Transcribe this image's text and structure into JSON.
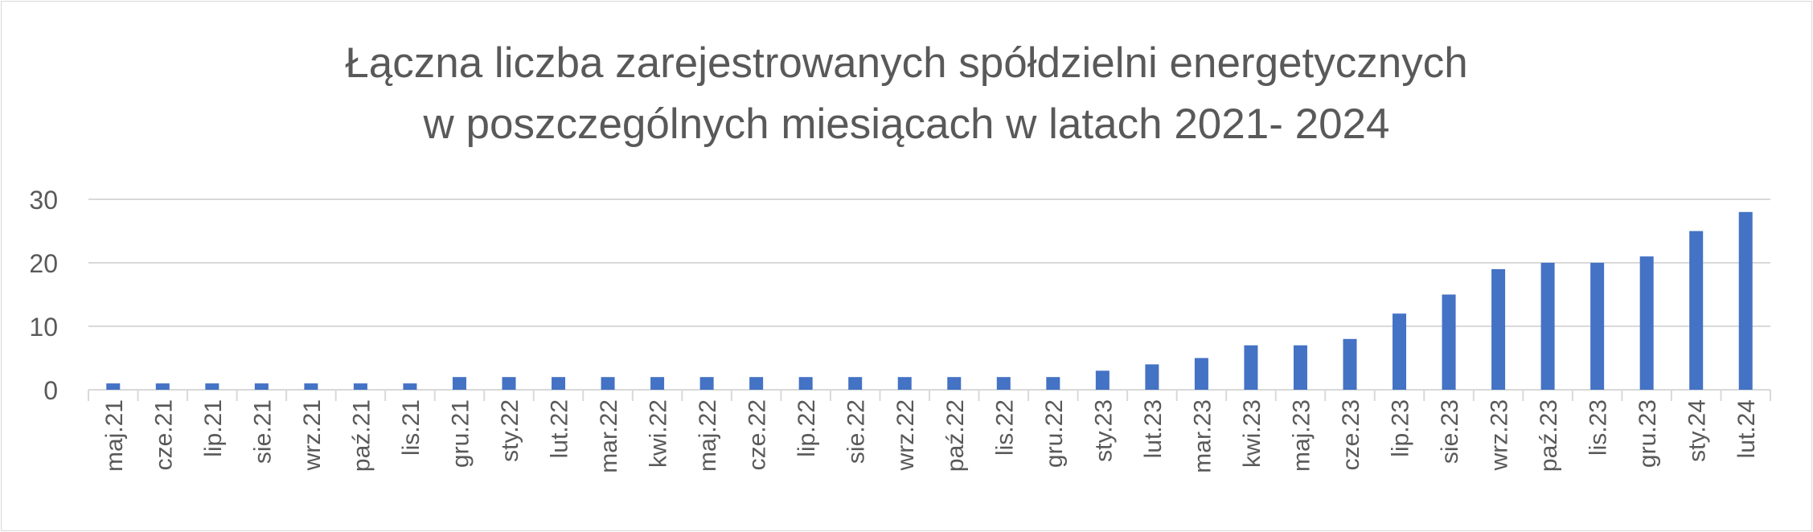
{
  "chart_data": {
    "type": "bar",
    "title_lines": [
      "Łączna liczba zarejestrowanych spółdzielni energetycznych",
      "w poszczególnych miesiącach w latach 2021- 2024"
    ],
    "categories": [
      "maj.21",
      "cze.21",
      "lip.21",
      "sie.21",
      "wrz.21",
      "paź.21",
      "lis.21",
      "gru.21",
      "sty.22",
      "lut.22",
      "mar.22",
      "kwi.22",
      "maj.22",
      "cze.22",
      "lip.22",
      "sie.22",
      "wrz.22",
      "paź.22",
      "lis.22",
      "gru.22",
      "sty.23",
      "lut.23",
      "mar.23",
      "kwi.23",
      "maj.23",
      "cze.23",
      "lip.23",
      "sie.23",
      "wrz.23",
      "paź.23",
      "lis.23",
      "gru.23",
      "sty.24",
      "lut.24"
    ],
    "values": [
      1,
      1,
      1,
      1,
      1,
      1,
      1,
      2,
      2,
      2,
      2,
      2,
      2,
      2,
      2,
      2,
      2,
      2,
      2,
      2,
      3,
      4,
      5,
      7,
      7,
      8,
      12,
      15,
      19,
      20,
      20,
      21,
      25,
      28
    ],
    "ylim": [
      0,
      30
    ],
    "yticks": [
      0,
      10,
      20,
      30
    ],
    "grid": true,
    "legend": "none",
    "bar_color": "#4472c4",
    "grid_color": "#d9d9d9",
    "text_color": "#595959"
  }
}
